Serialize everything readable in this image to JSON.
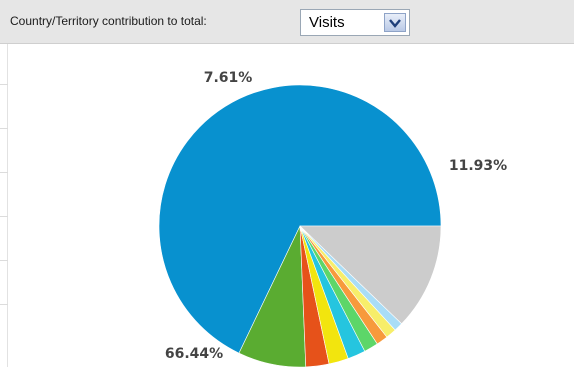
{
  "toolbar": {
    "label": "Country/Territory contribution to total:",
    "metric_selected": "Visits"
  },
  "chart_data": {
    "type": "pie",
    "title": "",
    "slices": [
      {
        "value": 66.44,
        "color": "#0891cf",
        "label": "66.44%"
      },
      {
        "value": 7.61,
        "color": "#5aac31",
        "label": "7.61%"
      },
      {
        "value": 2.6,
        "color": "#e6521a",
        "label": ""
      },
      {
        "value": 2.2,
        "color": "#f2e50e",
        "label": ""
      },
      {
        "value": 2.0,
        "color": "#25c5df",
        "label": ""
      },
      {
        "value": 1.6,
        "color": "#5dd669",
        "label": ""
      },
      {
        "value": 1.3,
        "color": "#f79a3c",
        "label": ""
      },
      {
        "value": 1.2,
        "color": "#f7ee6a",
        "label": ""
      },
      {
        "value": 1.0,
        "color": "#a9ddf6",
        "label": ""
      },
      {
        "value": 11.93,
        "color": "#cccccc",
        "label": "11.93%"
      }
    ],
    "start": "3 o'clock, counterclockwise"
  }
}
